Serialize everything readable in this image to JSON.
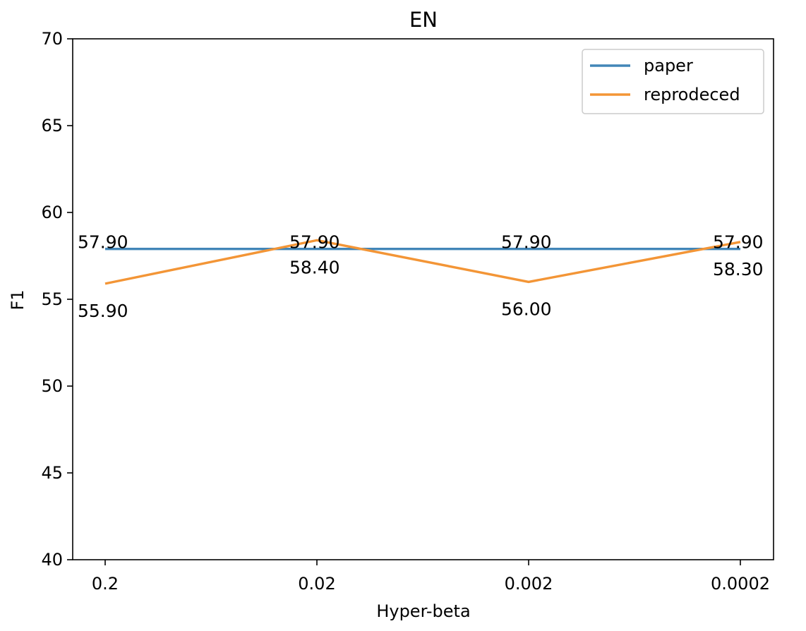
{
  "chart_data": {
    "type": "line",
    "title": "EN",
    "xlabel": "Hyper-beta",
    "ylabel": "F1",
    "categories": [
      "0.2",
      "0.02",
      "0.002",
      "0.0002"
    ],
    "ylim": [
      40,
      70
    ],
    "yticks": [
      40,
      45,
      50,
      55,
      60,
      65,
      70
    ],
    "ytick_labels": [
      "40",
      "45",
      "50",
      "55",
      "60",
      "65",
      "70"
    ],
    "grid": false,
    "legend_position": "top-right",
    "series": [
      {
        "name": "paper",
        "color": "#4286b8",
        "values": [
          57.9,
          57.9,
          57.9,
          57.9
        ],
        "labels": [
          "57.90",
          "57.90",
          "57.90",
          "57.90"
        ]
      },
      {
        "name": "reprodeced",
        "color": "#f39536",
        "values": [
          55.9,
          58.4,
          56.0,
          58.3
        ],
        "labels": [
          "55.90",
          "58.40",
          "56.00",
          "58.30"
        ]
      }
    ]
  }
}
